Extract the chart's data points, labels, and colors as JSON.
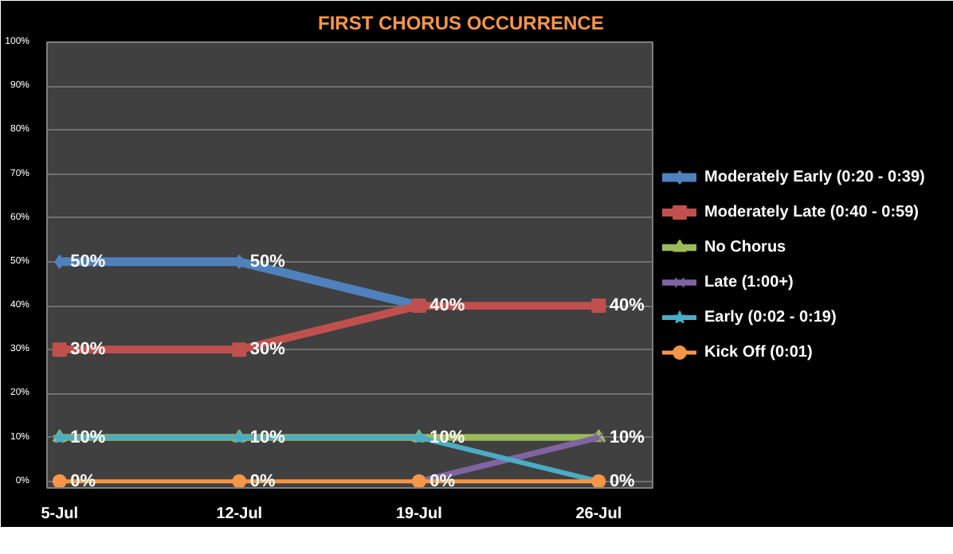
{
  "chart_data": {
    "type": "line",
    "title": "FIRST CHORUS OCCURRENCE",
    "categories": [
      "5-Jul",
      "12-Jul",
      "19-Jul",
      "26-Jul"
    ],
    "series": [
      {
        "name": "Moderately Early (0:20 - 0:39)",
        "color": "#4f81bd",
        "marker": "diamond",
        "values": [
          50,
          50,
          40,
          null
        ],
        "value_labels": [
          "50%",
          "50%",
          null,
          null
        ]
      },
      {
        "name": "Moderately Late (0:40 - 0:59)",
        "color": "#c0504d",
        "marker": "square",
        "values": [
          30,
          30,
          40,
          40
        ],
        "value_labels": [
          "30%",
          "30%",
          "40%",
          "40%"
        ]
      },
      {
        "name": "No Chorus",
        "color": "#9bbb59",
        "marker": "triangle",
        "values": [
          10,
          10,
          10,
          10
        ],
        "value_labels": [
          "10%",
          "10%",
          "10%",
          "10%"
        ]
      },
      {
        "name": "Late (1:00+)",
        "color": "#8064a2",
        "marker": "cross",
        "values": [
          null,
          null,
          0,
          10
        ],
        "value_labels": [
          null,
          null,
          null,
          null
        ]
      },
      {
        "name": "Early (0:02 - 0:19)",
        "color": "#4bacc6",
        "marker": "star",
        "values": [
          10,
          10,
          10,
          0
        ],
        "value_labels": [
          null,
          null,
          null,
          null
        ]
      },
      {
        "name": "Kick Off (0:01)",
        "color": "#f79646",
        "marker": "circle",
        "values": [
          0,
          0,
          0,
          0
        ],
        "value_labels": [
          "0%",
          "0%",
          "0%",
          "0%"
        ]
      }
    ],
    "ylim": [
      -1.5,
      100
    ],
    "yticks": [
      {
        "value": 0,
        "label": "0%"
      },
      {
        "value": 10,
        "label": "10%"
      },
      {
        "value": 20,
        "label": "20%"
      },
      {
        "value": 30,
        "label": "30%"
      },
      {
        "value": 40,
        "label": "40%"
      },
      {
        "value": 50,
        "label": "50%"
      },
      {
        "value": 60,
        "label": "60%"
      },
      {
        "value": 70,
        "label": "70%"
      },
      {
        "value": 80,
        "label": "80%"
      },
      {
        "value": 90,
        "label": "90%"
      },
      {
        "value": 100,
        "label": "100%"
      }
    ],
    "grid": "y",
    "legend": "right"
  }
}
